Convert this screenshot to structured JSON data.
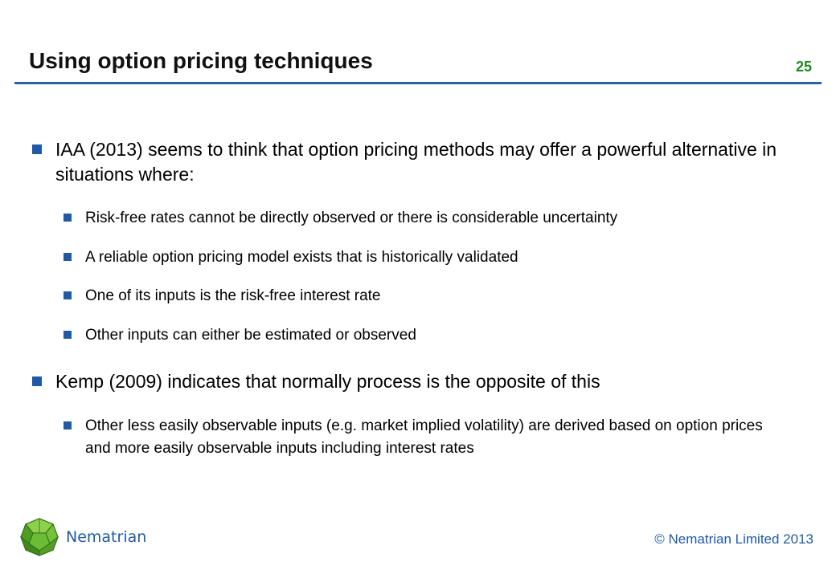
{
  "slide": {
    "title": "Using option pricing techniques",
    "page_number": "25"
  },
  "bullets": [
    {
      "level": 1,
      "text": "IAA (2013) seems to think that option pricing methods may offer a powerful alternative in situations where:"
    },
    {
      "level": 2,
      "text": "Risk-free rates cannot be directly observed or there is considerable uncertainty"
    },
    {
      "level": 2,
      "text": "A reliable option pricing model exists that is historically validated"
    },
    {
      "level": 2,
      "text": "One of its inputs is the risk-free interest rate"
    },
    {
      "level": 2,
      "text": "Other inputs can either be estimated or observed"
    },
    {
      "level": 1,
      "text": "Kemp (2009) indicates that normally process is the opposite of this"
    },
    {
      "level": 2,
      "text": "Other less easily observable inputs (e.g. market implied volatility) are derived based on option prices and more easily observable inputs including interest rates"
    }
  ],
  "footer": {
    "brand": "Nematrian",
    "copyright": "© Nematrian Limited 2013",
    "logo_icon": "green-polyhedron-icon"
  },
  "colors": {
    "bullet": "#1f5aa8",
    "rule": "#2b5fa8",
    "page_number": "#1e8a1e",
    "footer_text": "#1f5aa8"
  }
}
